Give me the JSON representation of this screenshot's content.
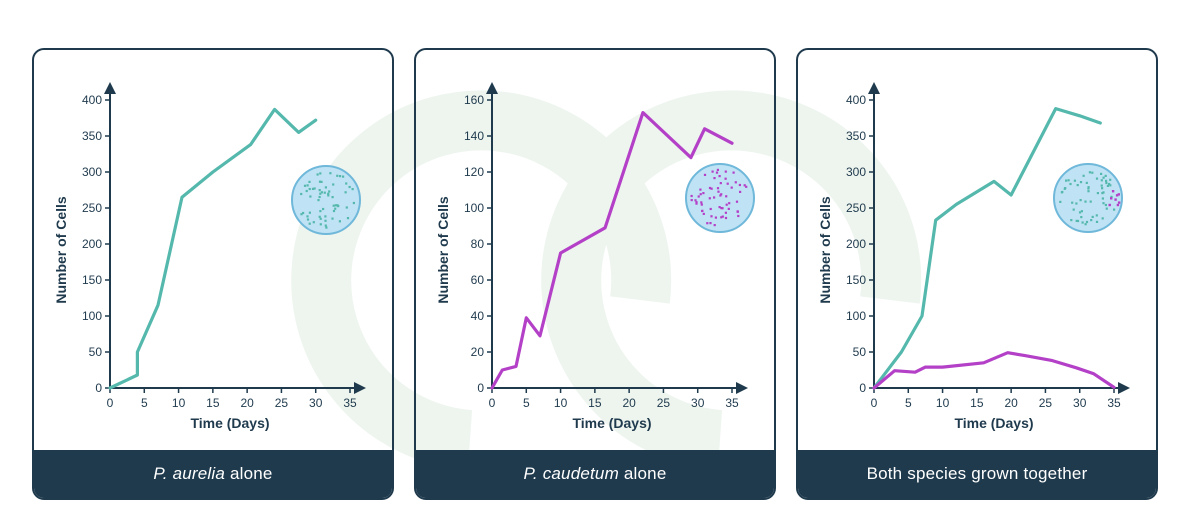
{
  "colors": {
    "teal": "#55b8ad",
    "purple": "#b340c7",
    "axis": "#1f3a4d",
    "caption_bg": "#1f3a4d",
    "dish_fill": "#bfe3f5",
    "dish_stroke": "#6fb8da"
  },
  "chart_data": [
    {
      "type": "line",
      "xlabel": "Time (Days)",
      "ylabel": "Number of Cells",
      "xlim": [
        0,
        35
      ],
      "ylim": [
        0,
        400
      ],
      "xticks": [
        0,
        5,
        10,
        15,
        20,
        25,
        30,
        35
      ],
      "yticks": [
        0,
        50,
        100,
        150,
        200,
        250,
        300,
        350,
        400
      ],
      "series": [
        {
          "color": "#55b8ad",
          "x": [
            0,
            4,
            4,
            7,
            10.5,
            15,
            20.5,
            24,
            27.5,
            30
          ],
          "y": [
            0,
            18,
            50,
            115,
            265,
            300,
            338,
            387,
            355,
            372
          ]
        }
      ],
      "icon": "dish-teal-dots-icon",
      "caption": {
        "italic": "P. aurelia",
        "rest": " alone"
      }
    },
    {
      "type": "line",
      "xlabel": "Time (Days)",
      "ylabel": "Number of Cells",
      "xlim": [
        0,
        35
      ],
      "ylim": [
        0,
        160
      ],
      "xticks": [
        0,
        5,
        10,
        15,
        20,
        25,
        30,
        35
      ],
      "yticks": [
        0,
        20,
        40,
        60,
        80,
        100,
        120,
        140,
        160
      ],
      "series": [
        {
          "color": "#b340c7",
          "x": [
            0,
            1.5,
            3.5,
            5,
            7,
            10,
            16.5,
            22,
            29,
            31,
            35
          ],
          "y": [
            0,
            10,
            12,
            39,
            29,
            75,
            89,
            153,
            128,
            144,
            136
          ]
        }
      ],
      "icon": "dish-purple-dots-icon",
      "caption": {
        "italic": "P. caudetum",
        "rest": " alone"
      }
    },
    {
      "type": "line",
      "xlabel": "Time (Days)",
      "ylabel": "Number of Cells",
      "xlim": [
        0,
        35
      ],
      "ylim": [
        0,
        400
      ],
      "xticks": [
        0,
        5,
        10,
        15,
        20,
        25,
        30,
        35
      ],
      "yticks": [
        0,
        50,
        100,
        150,
        200,
        250,
        300,
        350,
        400
      ],
      "series": [
        {
          "color": "#55b8ad",
          "x": [
            0,
            4,
            7,
            9,
            12,
            17.5,
            20,
            26.5,
            30,
            33
          ],
          "y": [
            0,
            50,
            100,
            233,
            255,
            287,
            268,
            388,
            378,
            368
          ]
        },
        {
          "color": "#b340c7",
          "x": [
            0,
            3,
            6,
            7.5,
            10,
            16,
            19.5,
            22,
            26,
            29.5,
            32,
            35
          ],
          "y": [
            0,
            24,
            22,
            29,
            29,
            35,
            49,
            45,
            38,
            28,
            20,
            1
          ]
        }
      ],
      "icon": "dish-mixed-dots-icon",
      "caption": {
        "italic": "",
        "rest": "Both species grown together"
      }
    }
  ]
}
